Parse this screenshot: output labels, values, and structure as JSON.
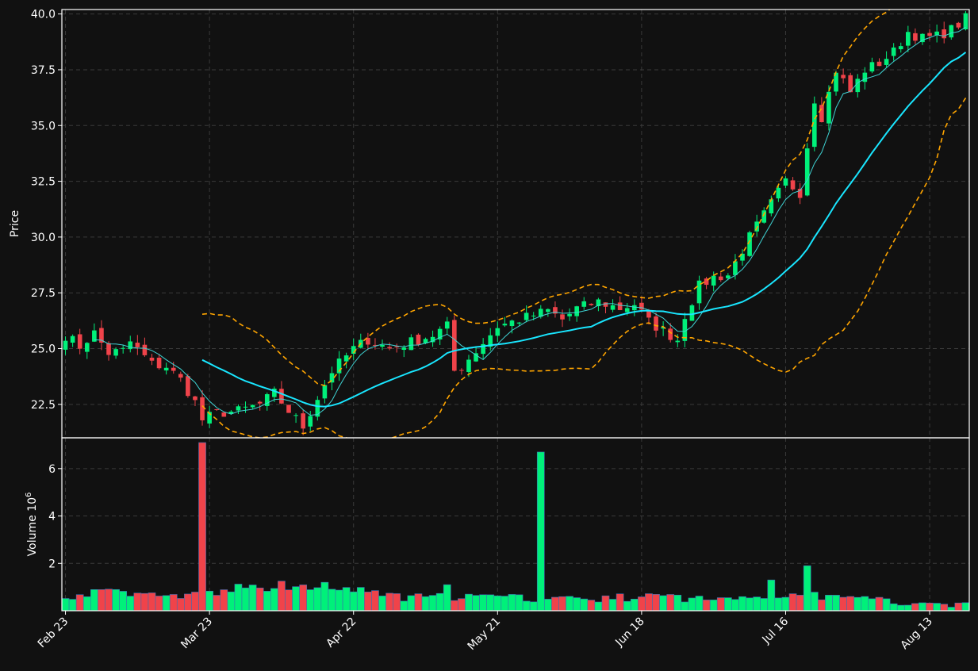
{
  "colors": {
    "background": "#111111",
    "frame": "#ffffff",
    "grid": "#3a3a3a",
    "up": "#00f07a",
    "down": "#f0434a",
    "ma_fast": "#3fd4d4",
    "ma_slow": "#19e6ff",
    "bands": "#ffa500",
    "text": "#ffffff"
  },
  "chart_data": {
    "type": "candlestick",
    "title": "",
    "price_axis": {
      "label": "Price",
      "ylim": [
        21.0,
        40.2
      ],
      "ticks": [
        22.5,
        25.0,
        27.5,
        30.0,
        32.5,
        35.0,
        37.5,
        40.0
      ],
      "tick_labels": [
        "22.5",
        "25.0",
        "27.5",
        "30.0",
        "32.5",
        "35.0",
        "37.5",
        "40.0"
      ]
    },
    "volume_axis": {
      "label": "Volume",
      "exponent_label": "10",
      "exponent_power": "6",
      "ylim": [
        0,
        7.3
      ],
      "ticks": [
        2,
        4,
        6
      ],
      "tick_labels": [
        "2",
        "4",
        "6"
      ]
    },
    "x_axis": {
      "n_bars": 126,
      "tick_indices": [
        0,
        20,
        40,
        60,
        80,
        100,
        120
      ],
      "tick_labels": [
        "Feb 23",
        "Mar 23",
        "Apr 22",
        "May 21",
        "Jun 18",
        "Jul 16",
        "Aug 13"
      ]
    },
    "grid": true,
    "price_anchors": [
      [
        0,
        25.6
      ],
      [
        2,
        25.1
      ],
      [
        4,
        25.7
      ],
      [
        6,
        24.8
      ],
      [
        8,
        24.9
      ],
      [
        9,
        25.3
      ],
      [
        12,
        24.3
      ],
      [
        14,
        24.2
      ],
      [
        16,
        23.6
      ],
      [
        18,
        22.6
      ],
      [
        19,
        21.8
      ],
      [
        21,
        22.1
      ],
      [
        24,
        22.2
      ],
      [
        27,
        22.5
      ],
      [
        29,
        23.0
      ],
      [
        31,
        22.2
      ],
      [
        33,
        21.5
      ],
      [
        35,
        22.8
      ],
      [
        37,
        24.0
      ],
      [
        40,
        25.0
      ],
      [
        42,
        25.4
      ],
      [
        45,
        25.0
      ],
      [
        48,
        25.3
      ],
      [
        51,
        25.6
      ],
      [
        53,
        26.0
      ],
      [
        54,
        24.0
      ],
      [
        55,
        24.2
      ],
      [
        57,
        24.9
      ],
      [
        60,
        26.0
      ],
      [
        63,
        26.3
      ],
      [
        67,
        26.7
      ],
      [
        69,
        26.3
      ],
      [
        71,
        26.8
      ],
      [
        74,
        27.1
      ],
      [
        77,
        26.8
      ],
      [
        79,
        27.0
      ],
      [
        81,
        26.2
      ],
      [
        83,
        25.8
      ],
      [
        85,
        25.4
      ],
      [
        86,
        26.5
      ],
      [
        88,
        27.8
      ],
      [
        90,
        28.2
      ],
      [
        92,
        28.3
      ],
      [
        95,
        30.0
      ],
      [
        96,
        30.5
      ],
      [
        98,
        31.5
      ],
      [
        100,
        32.5
      ],
      [
        102,
        32.0
      ],
      [
        104,
        36.2
      ],
      [
        105,
        35.4
      ],
      [
        107,
        37.5
      ],
      [
        109,
        36.5
      ],
      [
        111,
        37.5
      ],
      [
        113,
        37.8
      ],
      [
        115,
        38.3
      ],
      [
        117,
        39.2
      ],
      [
        119,
        38.9
      ],
      [
        121,
        39.0
      ],
      [
        123,
        39.3
      ],
      [
        125,
        39.8
      ]
    ],
    "volume_anchors": [
      [
        0,
        0.6
      ],
      [
        5,
        0.8
      ],
      [
        10,
        0.7
      ],
      [
        15,
        0.6
      ],
      [
        19,
        0.7
      ],
      [
        25,
        1.0
      ],
      [
        30,
        0.9
      ],
      [
        35,
        0.95
      ],
      [
        40,
        0.9
      ],
      [
        45,
        0.6
      ],
      [
        50,
        0.55
      ],
      [
        55,
        0.6
      ],
      [
        60,
        0.55
      ],
      [
        65,
        0.5
      ],
      [
        70,
        0.5
      ],
      [
        75,
        0.5
      ],
      [
        80,
        0.6
      ],
      [
        85,
        0.55
      ],
      [
        90,
        0.45
      ],
      [
        95,
        0.6
      ],
      [
        100,
        0.7
      ],
      [
        105,
        0.6
      ],
      [
        110,
        0.5
      ],
      [
        115,
        0.4
      ],
      [
        120,
        0.35
      ],
      [
        125,
        0.25
      ]
    ],
    "volume_spikes": [
      [
        19,
        7.1
      ],
      [
        66,
        6.7
      ],
      [
        36,
        1.2
      ],
      [
        98,
        1.3
      ],
      [
        103,
        1.9
      ],
      [
        53,
        1.1
      ],
      [
        30,
        1.25
      ]
    ],
    "series": [
      {
        "name": "",
        "kind": "moving-average-fast",
        "window": 5
      },
      {
        "name": "",
        "kind": "moving-average-slow",
        "window": 20
      },
      {
        "name": "",
        "kind": "band-upper"
      },
      {
        "name": "",
        "kind": "band-lower"
      }
    ],
    "band_width_sd": 2
  }
}
